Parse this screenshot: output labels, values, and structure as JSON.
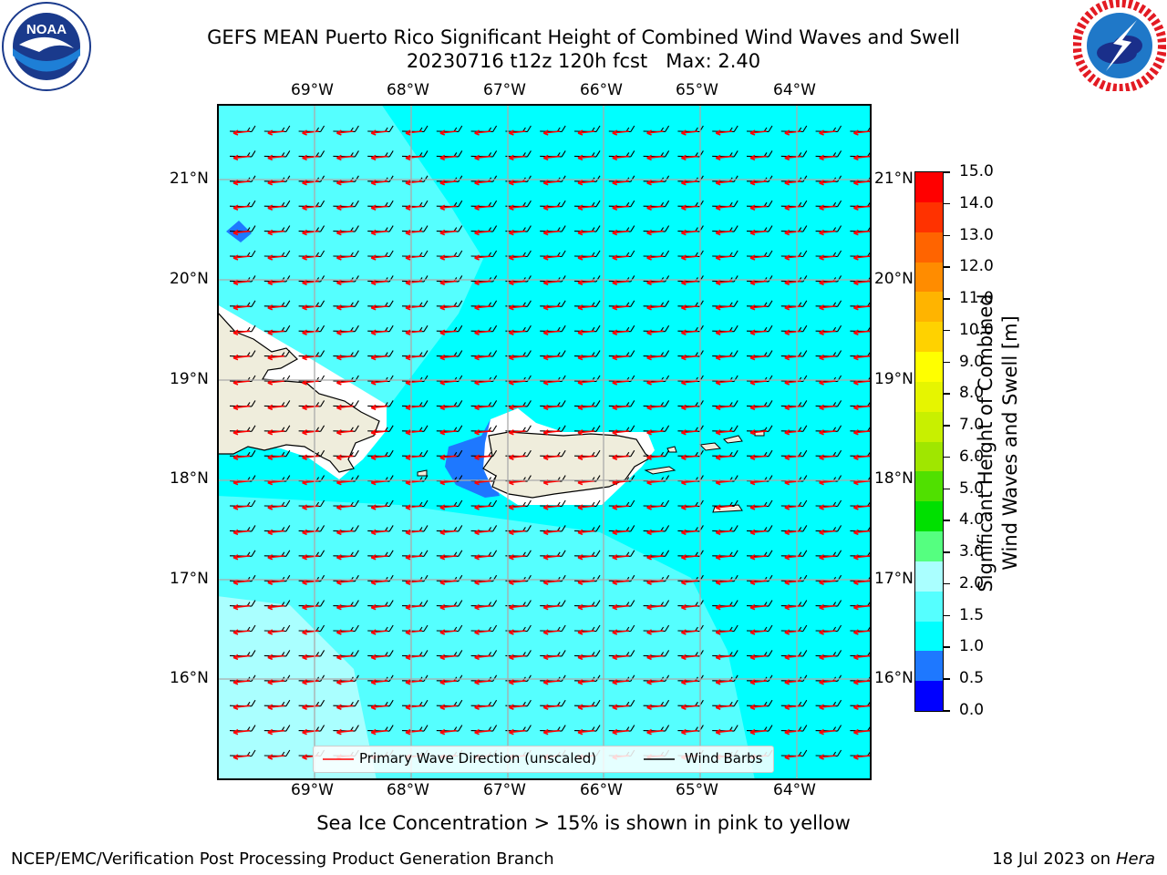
{
  "header": {
    "title_line1": "GEFS MEAN Puerto Rico Significant Height of Combined Wind Waves and Swell",
    "title_line2": "20230716 t12z 120h fcst   Max: 2.40"
  },
  "logos": {
    "noara_text": "NOAA",
    "noaa_ring_top": "NATIONAL OCEANIC AND ATMOSPHERIC ADMINISTRATION",
    "noaa_ring_bottom": "U.S. DEPARTMENT OF COMMERCE",
    "nws_ring": "NATIONAL WEATHER SERVICE"
  },
  "map": {
    "lon_labels": [
      "69°W",
      "68°W",
      "67°W",
      "66°W",
      "65°W",
      "64°W"
    ],
    "lat_labels": [
      "21°N",
      "20°N",
      "19°N",
      "18°N",
      "17°N",
      "16°N"
    ],
    "legend": {
      "wave_label": "Primary Wave Direction (unscaled)",
      "barb_label": "Wind Barbs",
      "wave_color": "#ff0000",
      "barb_color": "#000000"
    },
    "ocean_colors": {
      "low": "#00ffff",
      "mid": "#55ffff",
      "high": "#aaffff",
      "very_low": "#1e90ff",
      "land": "#efeddc"
    }
  },
  "colorbar": {
    "label_line1": "Significant Height of Combined",
    "label_line2": "Wind Waves and Swell [m]",
    "ticks": [
      "15.0",
      "14.0",
      "13.0",
      "12.0",
      "11.0",
      "10.0",
      "9.0",
      "8.0",
      "7.0",
      "6.0",
      "5.0",
      "4.0",
      "3.0",
      "2.0",
      "1.5",
      "1.0",
      "0.5",
      "0.0"
    ],
    "colors": [
      "#0000ff",
      "#1e78ff",
      "#00ffff",
      "#55ffff",
      "#aaffff",
      "#55ff80",
      "#00e000",
      "#50e000",
      "#a0e600",
      "#c8f000",
      "#e6f500",
      "#ffff00",
      "#ffd200",
      "#ffb400",
      "#ff8c00",
      "#ff6400",
      "#ff3200",
      "#ff0000"
    ]
  },
  "notes": {
    "sea_ice": "Sea Ice Concentration > 15% is shown in pink to yellow",
    "left": "NCEP/EMC/Verification Post Processing Product Generation Branch",
    "right_prefix": "18 Jul 2023 on ",
    "right_host": "Hera"
  }
}
